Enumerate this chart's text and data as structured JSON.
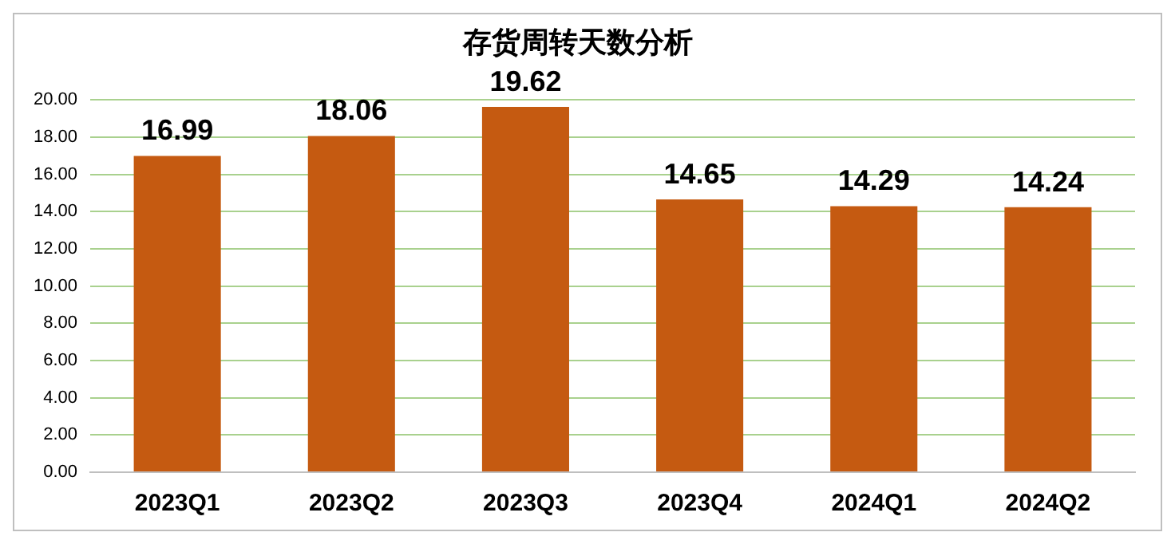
{
  "chart_data": {
    "type": "bar",
    "title": "存货周转天数分析",
    "categories": [
      "2023Q1",
      "2023Q2",
      "2023Q3",
      "2023Q4",
      "2024Q1",
      "2024Q2"
    ],
    "series": [
      {
        "color": "#c55a11",
        "values": [
          16.99,
          18.06,
          19.62,
          14.65,
          14.29,
          14.24
        ]
      }
    ],
    "ylim": [
      0,
      20
    ],
    "yticks": [
      {
        "value": 0,
        "label": "0.00"
      },
      {
        "value": 2,
        "label": "2.00"
      },
      {
        "value": 4,
        "label": "4.00"
      },
      {
        "value": 6,
        "label": "6.00"
      },
      {
        "value": 8,
        "label": "8.00"
      },
      {
        "value": 10,
        "label": "10.00"
      },
      {
        "value": 12,
        "label": "12.00"
      },
      {
        "value": 14,
        "label": "14.00"
      },
      {
        "value": 16,
        "label": "16.00"
      },
      {
        "value": 18,
        "label": "18.00"
      },
      {
        "value": 20,
        "label": "20.00"
      }
    ],
    "grid": "y",
    "data_labels": true,
    "legend": false
  }
}
